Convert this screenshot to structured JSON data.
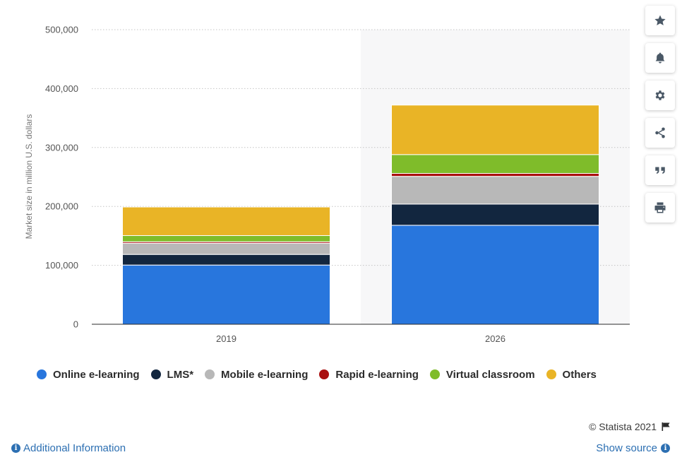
{
  "chart_data": {
    "type": "bar",
    "stacked": true,
    "categories": [
      "2019",
      "2026"
    ],
    "ylabel": "Market size in million U.S. dollars",
    "ylim": [
      0,
      500000
    ],
    "yticks": [
      0,
      100000,
      200000,
      300000,
      400000,
      500000
    ],
    "ytick_labels": [
      "0",
      "100,000",
      "200,000",
      "300,000",
      "400,000",
      "500,000"
    ],
    "grid": true,
    "legend_position": "bottom",
    "highlighted_category": "2026",
    "series": [
      {
        "name": "Online e-learning",
        "color": "#2876dd",
        "values": [
          100500,
          168000
        ]
      },
      {
        "name": "LMS*",
        "color": "#12263f",
        "values": [
          18000,
          36000
        ]
      },
      {
        "name": "Mobile e-learning",
        "color": "#b8b8b8",
        "values": [
          19000,
          47000
        ]
      },
      {
        "name": "Rapid e-learning",
        "color": "#a90f0f",
        "values": [
          2500,
          5000
        ]
      },
      {
        "name": "Virtual classroom",
        "color": "#7fbc2a",
        "values": [
          10500,
          32000
        ]
      },
      {
        "name": "Others",
        "color": "#e9b426",
        "values": [
          48500,
          84000
        ]
      }
    ]
  },
  "toolbar": {
    "buttons": [
      {
        "name": "favorite-star-icon"
      },
      {
        "name": "notification-bell-icon"
      },
      {
        "name": "settings-gear-icon"
      },
      {
        "name": "share-icon"
      },
      {
        "name": "cite-quote-icon"
      },
      {
        "name": "print-icon"
      }
    ]
  },
  "footer": {
    "copyright": "© Statista 2021",
    "additional_info": "Additional Information",
    "show_source": "Show source",
    "info_glyph": "i",
    "link_color": "#2c6fb2"
  }
}
